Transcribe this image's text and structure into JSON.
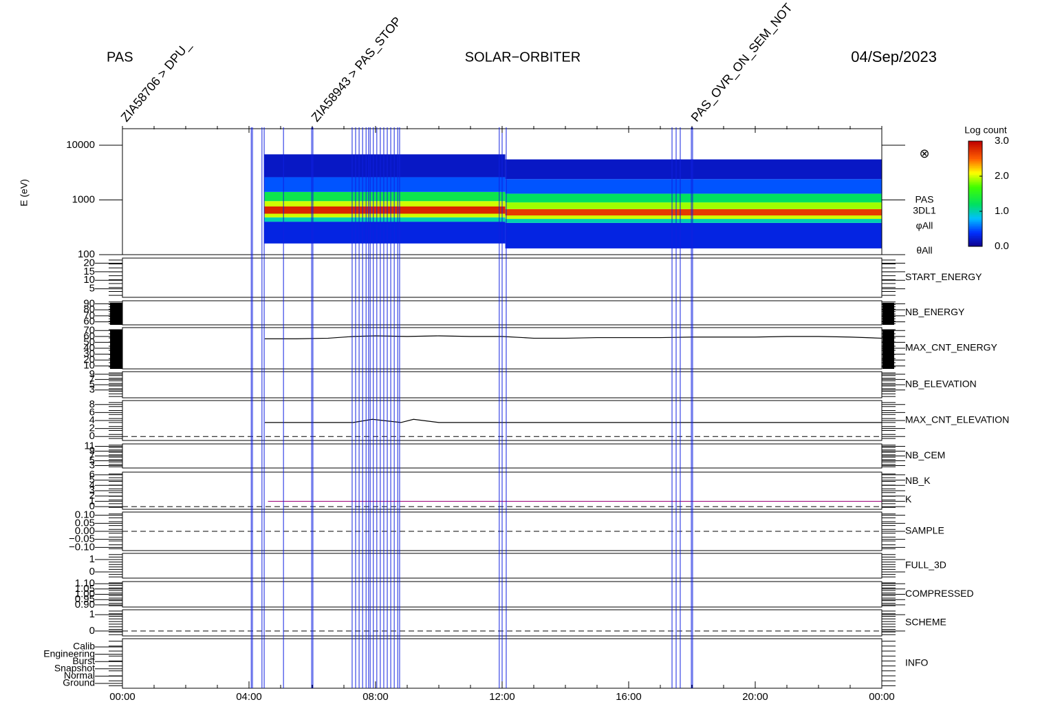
{
  "chart_data": {
    "type": "spectrogram_stack",
    "left_title": "PAS",
    "title": "SOLAR−ORBITER",
    "date": "04/Sep/2023",
    "xlim": [
      0,
      24
    ],
    "xticks": [
      {
        "value": 0,
        "label": "00:00"
      },
      {
        "value": 4,
        "label": "04:00"
      },
      {
        "value": 8,
        "label": "08:00"
      },
      {
        "value": 12,
        "label": "12:00"
      },
      {
        "value": 16,
        "label": "16:00"
      },
      {
        "value": 20,
        "label": "20:00"
      },
      {
        "value": 24,
        "label": "00:00"
      }
    ],
    "ylabel": "E (eV)",
    "side_labels": [
      "PAS",
      "3DL1",
      "φAll",
      "θAll"
    ],
    "colorbar": {
      "title": "Log count",
      "lim": [
        0,
        3
      ],
      "ticks": [
        {
          "value": 0,
          "label": "0.0"
        },
        {
          "value": 1,
          "label": "1.0"
        },
        {
          "value": 2,
          "label": "2.0"
        },
        {
          "value": 3,
          "label": "3.0"
        }
      ]
    },
    "spectrogram": {
      "log": true,
      "ylim": [
        100,
        20000
      ],
      "yticks": [
        10000,
        1000,
        100
      ],
      "bands": [
        {
          "t": [
            4.48,
            12.1
          ],
          "e": [
            160,
            400
          ],
          "level": 0.3
        },
        {
          "t": [
            4.48,
            12.1
          ],
          "e": [
            400,
            480
          ],
          "level": 1.0
        },
        {
          "t": [
            4.48,
            12.1
          ],
          "e": [
            480,
            560
          ],
          "level": 2.0
        },
        {
          "t": [
            4.48,
            12.1
          ],
          "e": [
            560,
            760
          ],
          "level": 2.8
        },
        {
          "t": [
            4.48,
            12.1
          ],
          "e": [
            760,
            950
          ],
          "level": 2.0
        },
        {
          "t": [
            4.48,
            12.1
          ],
          "e": [
            950,
            1400
          ],
          "level": 1.3
        },
        {
          "t": [
            4.48,
            12.1
          ],
          "e": [
            1400,
            2600
          ],
          "level": 0.5
        },
        {
          "t": [
            4.48,
            12.1
          ],
          "e": [
            2600,
            6800
          ],
          "level": 0.2
        },
        {
          "t": [
            12.1,
            24
          ],
          "e": [
            130,
            380
          ],
          "level": 0.3
        },
        {
          "t": [
            12.1,
            24
          ],
          "e": [
            380,
            450
          ],
          "level": 1.0
        },
        {
          "t": [
            12.1,
            24
          ],
          "e": [
            450,
            520
          ],
          "level": 2.0
        },
        {
          "t": [
            12.1,
            24
          ],
          "e": [
            520,
            680
          ],
          "level": 2.7
        },
        {
          "t": [
            12.1,
            24
          ],
          "e": [
            680,
            900
          ],
          "level": 1.9
        },
        {
          "t": [
            12.1,
            24
          ],
          "e": [
            900,
            1300
          ],
          "level": 1.2
        },
        {
          "t": [
            12.1,
            24
          ],
          "e": [
            1300,
            2400
          ],
          "level": 0.5
        },
        {
          "t": [
            12.1,
            24
          ],
          "e": [
            2400,
            5500
          ],
          "level": 0.2
        }
      ]
    },
    "panels": [
      {
        "labels": [
          {
            "text": "START_ENERGY",
            "color": "#000000"
          }
        ],
        "ylim": [
          0,
          23
        ],
        "yticks": [
          20,
          15,
          10,
          5
        ]
      },
      {
        "labels": [
          {
            "text": "NB_ENERGY",
            "color": "#2020c0"
          }
        ],
        "ylim": [
          55,
          95
        ],
        "yticks": [
          90,
          80,
          70,
          60
        ]
      },
      {
        "labels": [
          {
            "text": "MAX_CNT_ENERGY",
            "color": "#000000"
          }
        ],
        "ylim": [
          5,
          75
        ],
        "yticks": [
          70,
          60,
          50,
          40,
          30,
          20,
          10
        ],
        "series": [
          {
            "color": "#000000",
            "x": [
              4.5,
              5.5,
              6.5,
              7.3,
              8,
              9,
              10,
              11,
              12,
              13,
              14,
              15,
              16,
              17,
              18,
              19,
              20,
              21,
              22,
              23,
              24
            ],
            "values": [
              56,
              56,
              57,
              60,
              61,
              60,
              61,
              60,
              60,
              57,
              57,
              58,
              58,
              58,
              59,
              59,
              59,
              60,
              60,
              59,
              57
            ]
          }
        ]
      },
      {
        "labels": [
          {
            "text": "NB_ELEVATION",
            "color": "#2020c0"
          }
        ],
        "ylim": [
          0,
          10
        ],
        "yticks": [
          9,
          7,
          5,
          3
        ]
      },
      {
        "labels": [
          {
            "text": "MAX_CNT_ELEVATION",
            "color": "#000000"
          }
        ],
        "ylim": [
          -1,
          9
        ],
        "yticks": [
          8,
          6,
          4,
          2,
          0
        ],
        "zero_line": true,
        "series": [
          {
            "color": "#000000",
            "x": [
              4.5,
              7.3,
              7.9,
              8.8,
              9.2,
              10,
              12,
              13,
              16,
              18,
              20,
              22,
              24
            ],
            "values": [
              3.5,
              3.5,
              4.3,
              3.5,
              4.3,
              3.5,
              3.5,
              3.5,
              3.5,
              3.5,
              3.5,
              3.5,
              3.5
            ]
          }
        ]
      },
      {
        "labels": [
          {
            "text": "NB_CEM",
            "color": "#2020c0"
          }
        ],
        "ylim": [
          2,
          12
        ],
        "yticks": [
          11,
          9,
          7,
          5,
          3
        ]
      },
      {
        "labels": [
          {
            "text": "NB_K",
            "color": "#d02020"
          },
          {
            "text": "K",
            "color": "#2020c0"
          }
        ],
        "ylim": [
          -0.5,
          6.5
        ],
        "yticks": [
          6,
          5,
          4,
          3,
          2,
          1,
          0
        ],
        "zero_line": true,
        "series": [
          {
            "color": "#a01080",
            "x": [
              4.6,
              24
            ],
            "values": [
              1,
              1
            ]
          }
        ]
      },
      {
        "labels": [
          {
            "text": "SAMPLE",
            "color": "#2020c0"
          }
        ],
        "ylim": [
          -0.12,
          0.12
        ],
        "yticks": [
          {
            "value": 0.1,
            "label": "0.10"
          },
          0.05,
          {
            "value": 0,
            "label": "0.00"
          },
          {
            "value": -0.05,
            "label": "−0.05"
          },
          {
            "value": -0.1,
            "label": "−0.10"
          }
        ],
        "zero_line": true
      },
      {
        "labels": [
          {
            "text": "FULL_3D",
            "color": "#2020c0"
          }
        ],
        "ylim": [
          -0.5,
          1.5
        ],
        "yticks": [
          1,
          0
        ]
      },
      {
        "labels": [
          {
            "text": "COMPRESSED",
            "color": "#000000"
          }
        ],
        "ylim": [
          0.88,
          1.12
        ],
        "yticks": [
          {
            "value": 1.1,
            "label": "1.10"
          },
          1.05,
          {
            "value": 1,
            "label": "1.00"
          },
          0.95,
          {
            "value": 0.9,
            "label": "0.90"
          }
        ]
      },
      {
        "labels": [
          {
            "text": "SCHEME",
            "color": "#000000"
          }
        ],
        "ylim": [
          -0.3,
          1.3
        ],
        "yticks": [
          1,
          0
        ],
        "zero_line": true
      },
      {
        "labels": [
          {
            "text": "INFO",
            "color": "#2020c0"
          }
        ],
        "categories": [
          "Calib",
          "Engineering",
          "Burst",
          "Snapshot",
          "Normal",
          "Ground"
        ]
      }
    ],
    "events": [
      4.07,
      4.11,
      4.41,
      4.48,
      5.09,
      5.98,
      6.02,
      7.26,
      7.37,
      7.48,
      7.59,
      7.7,
      7.78,
      7.83,
      7.93,
      8.04,
      8.15,
      8.26,
      8.37,
      8.48,
      8.59,
      8.7,
      8.76,
      11.91,
      12.0,
      12.13,
      17.37,
      17.5,
      17.63,
      17.98,
      18.02
    ],
    "annotations": [
      {
        "x": 0,
        "text": "ZIA58706 > DPU_",
        "color": "#2020e0"
      },
      {
        "x": 6.02,
        "text": "ZIA58943 > PAS_STOP",
        "color": "#2020e0"
      },
      {
        "x": 18.02,
        "text": "PAS_OVR_ON_SEM_NOT",
        "color": "#e02020"
      }
    ]
  }
}
